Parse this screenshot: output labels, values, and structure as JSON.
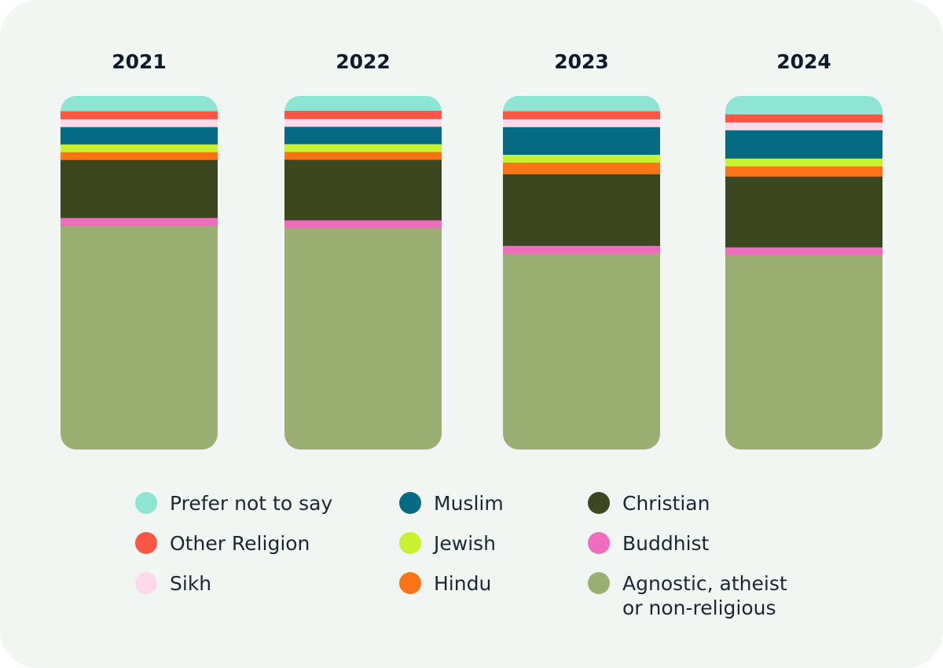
{
  "chart_data": {
    "type": "bar",
    "stacked": true,
    "normalized": true,
    "title": "",
    "xlabel": "",
    "ylabel": "",
    "ylim": [
      0,
      100
    ],
    "categories": [
      "2021",
      "2022",
      "2023",
      "2024"
    ],
    "series": [
      {
        "name": "Agnostic, atheist or non-religious",
        "color": "#9caf73",
        "values": [
          63.4,
          62.6,
          55.4,
          55.1
        ]
      },
      {
        "name": "Buddhist",
        "color": "#f06cbc",
        "values": [
          2.2,
          2.2,
          2.2,
          2.2
        ]
      },
      {
        "name": "Christian",
        "color": "#3c4720",
        "values": [
          16.4,
          17.1,
          20.2,
          20.0
        ]
      },
      {
        "name": "Hindu",
        "color": "#fd7416",
        "values": [
          2.2,
          2.2,
          3.3,
          2.9
        ]
      },
      {
        "name": "Jewish",
        "color": "#c8f230",
        "values": [
          2.2,
          2.2,
          2.2,
          2.2
        ]
      },
      {
        "name": "Muslim",
        "color": "#056a84",
        "values": [
          4.9,
          4.9,
          7.8,
          8.0
        ]
      },
      {
        "name": "Sikh",
        "color": "#ffd9ea",
        "values": [
          2.2,
          2.2,
          2.2,
          2.2
        ]
      },
      {
        "name": "Other Religion",
        "color": "#fd5743",
        "values": [
          2.2,
          2.2,
          2.2,
          2.2
        ]
      },
      {
        "name": "Prefer not to say",
        "color": "#8de5d4",
        "values": [
          4.3,
          4.2,
          4.3,
          5.2
        ]
      }
    ],
    "legend": {
      "placement": "bottom",
      "items": [
        {
          "label": "Prefer not to say",
          "color": "#8de5d4"
        },
        {
          "label": "Other Religion",
          "color": "#fd5743"
        },
        {
          "label": "Sikh",
          "color": "#ffd9ea"
        },
        {
          "label": "Muslim",
          "color": "#056a84"
        },
        {
          "label": "Jewish",
          "color": "#c8f230"
        },
        {
          "label": "Hindu",
          "color": "#fd7416"
        },
        {
          "label": "Christian",
          "color": "#3c4720"
        },
        {
          "label": "Buddhist",
          "color": "#f06cbc"
        },
        {
          "label": "Agnostic, atheist",
          "label_line2": "or non-religious",
          "color": "#9caf73"
        }
      ]
    }
  }
}
